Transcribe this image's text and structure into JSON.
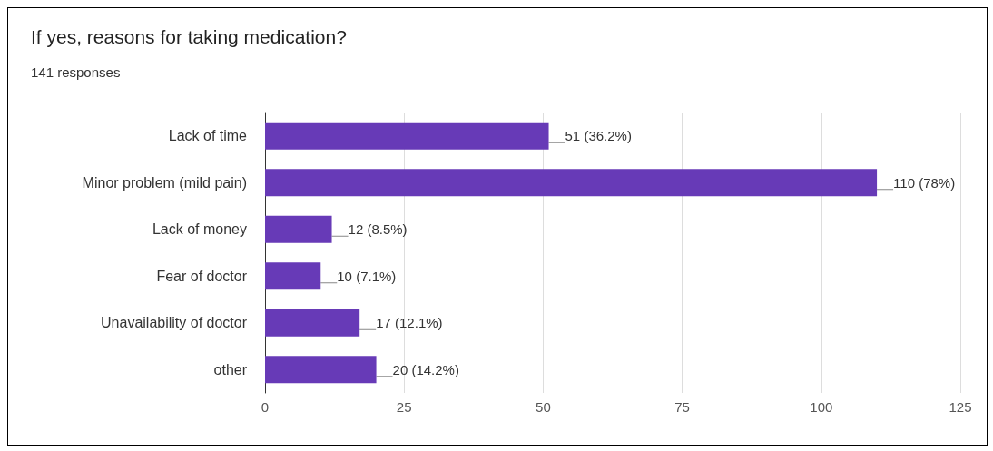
{
  "chart_data": {
    "type": "bar",
    "orientation": "horizontal",
    "title": "If yes, reasons for taking medication?",
    "subtitle": "141 responses",
    "categories": [
      "Lack of time",
      "Minor problem (mild pain)",
      "Lack of money",
      "Fear of doctor",
      "Unavailability of doctor",
      "other"
    ],
    "series": [
      {
        "color": "#673ab7",
        "values": [
          51,
          110,
          12,
          10,
          17,
          20
        ],
        "value_labels": [
          "51 (36.2%)",
          "110 (78%)",
          "12 (8.5%)",
          "10 (7.1%)",
          "17 (12.1%)",
          "20 (14.2%)"
        ]
      }
    ],
    "xlim": [
      0,
      125
    ],
    "xticks": [
      0,
      25,
      50,
      75,
      100,
      125
    ],
    "grid": "x"
  }
}
